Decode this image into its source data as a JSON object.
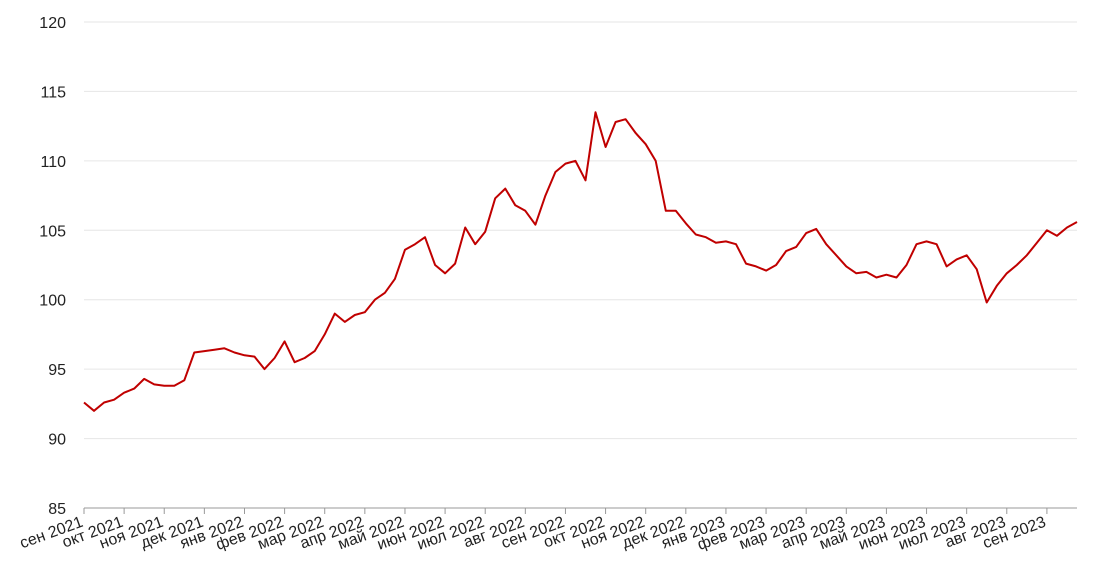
{
  "chart_data": {
    "type": "line",
    "categories": [
      "сен 2021",
      null,
      null,
      null,
      "окт 2021",
      null,
      null,
      null,
      "ноя 2021",
      null,
      null,
      null,
      "дек 2021",
      null,
      null,
      null,
      "янв 2022",
      null,
      null,
      null,
      "фев 2022",
      null,
      null,
      null,
      "мар 2022",
      null,
      null,
      null,
      "апр 2022",
      null,
      null,
      null,
      "май 2022",
      null,
      null,
      null,
      "июн 2022",
      null,
      null,
      null,
      "июл 2022",
      null,
      null,
      null,
      "авг 2022",
      null,
      null,
      null,
      "сен 2022",
      null,
      null,
      null,
      "окт 2022",
      null,
      null,
      null,
      "ноя 2022",
      null,
      null,
      null,
      "дек 2022",
      null,
      null,
      null,
      "янв 2023",
      null,
      null,
      null,
      "фев 2023",
      null,
      null,
      null,
      "мар 2023",
      null,
      null,
      null,
      "апр 2023",
      null,
      null,
      null,
      "май 2023",
      null,
      null,
      null,
      "июн 2023",
      null,
      null,
      null,
      "июл 2023",
      null,
      null,
      null,
      "авг 2023",
      null,
      null,
      null,
      "сен 2023",
      null,
      null,
      null
    ],
    "series": [
      {
        "color": "#c00000",
        "values": [
          92.6,
          92.0,
          92.6,
          92.8,
          93.3,
          93.6,
          94.3,
          93.9,
          93.8,
          93.8,
          94.2,
          96.2,
          96.3,
          96.4,
          96.5,
          96.2,
          96.0,
          95.9,
          95.0,
          95.8,
          97.0,
          95.5,
          95.8,
          96.3,
          97.5,
          99.0,
          98.4,
          98.9,
          99.1,
          100.0,
          100.5,
          101.5,
          103.6,
          104.0,
          104.5,
          102.5,
          101.9,
          102.6,
          105.2,
          104.0,
          104.9,
          107.3,
          108.0,
          106.8,
          106.4,
          105.4,
          107.5,
          109.2,
          109.8,
          110.0,
          108.6,
          113.5,
          111.0,
          112.8,
          113.0,
          112.0,
          111.2,
          110.0,
          106.4,
          106.4,
          105.5,
          104.7,
          104.5,
          104.1,
          104.2,
          104.0,
          102.6,
          102.4,
          102.1,
          102.5,
          103.5,
          103.8,
          104.8,
          105.1,
          104.0,
          103.2,
          102.4,
          101.9,
          102.0,
          101.6,
          101.8,
          101.6,
          102.5,
          104.0,
          104.2,
          104.0,
          102.4,
          102.9,
          103.2,
          102.2,
          99.8,
          101.0,
          101.9,
          102.5,
          103.2,
          104.1,
          105.0,
          104.6,
          105.2,
          105.6
        ]
      }
    ],
    "ylim": [
      85,
      120
    ],
    "yticks": [
      85,
      90,
      95,
      100,
      105,
      110,
      115,
      120
    ],
    "grid": true
  }
}
